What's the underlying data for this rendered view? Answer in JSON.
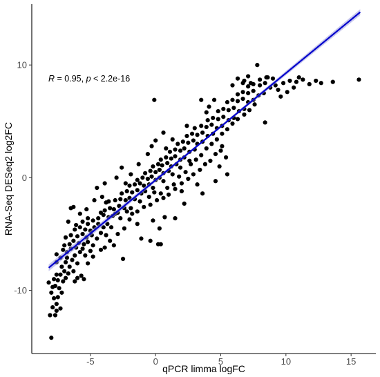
{
  "chart_data": {
    "type": "scatter",
    "title": "",
    "xlabel": "qPCR limma logFC",
    "ylabel": "RNA-Seq DESeq2 log2FC",
    "xlim": [
      -9.5,
      16.9
    ],
    "ylim": [
      -15.6,
      15.4
    ],
    "xticks": [
      -5,
      0,
      5,
      10,
      15
    ],
    "yticks": [
      -10,
      0,
      10
    ],
    "grid": false,
    "annotation": {
      "r_symbol": "R",
      "r_text": " = 0.95, ",
      "p_symbol": "p",
      "p_text": " < 2.2e-16"
    },
    "regression": {
      "color": "#0000cc",
      "band_color": "#9a9adf",
      "x_range": [
        -8.2,
        15.7
      ],
      "slope": 0.949,
      "intercept": -0.21
    },
    "point_color": "#000000",
    "points": [
      [
        -8.1,
        -12.2
      ],
      [
        -7.7,
        -12.2
      ],
      [
        -8.0,
        -14.2
      ],
      [
        -7.9,
        -11.5
      ],
      [
        -7.6,
        -11.8
      ],
      [
        -7.3,
        -11.6
      ],
      [
        -7.6,
        -11.2
      ],
      [
        -7.8,
        -10.7
      ],
      [
        -8.0,
        -10.2
      ],
      [
        -7.5,
        -10.6
      ],
      [
        -7.2,
        -10.2
      ],
      [
        -7.9,
        -9.7
      ],
      [
        -8.2,
        -9.3
      ],
      [
        -7.7,
        -9.6
      ],
      [
        -7.4,
        -9.8
      ],
      [
        -7.8,
        -9.0
      ],
      [
        -7.5,
        -9.1
      ],
      [
        -7.1,
        -9.2
      ],
      [
        -6.9,
        -8.9
      ],
      [
        -7.6,
        -8.6
      ],
      [
        -7.0,
        -8.3
      ],
      [
        -7.3,
        -8.6
      ],
      [
        -6.7,
        -8.5
      ],
      [
        -6.3,
        -8.3
      ],
      [
        -5.7,
        -8.7
      ],
      [
        -7.2,
        -7.9
      ],
      [
        -6.6,
        -7.9
      ],
      [
        -6.9,
        -7.5
      ],
      [
        -7.6,
        -7.5
      ],
      [
        -7.3,
        -7.1
      ],
      [
        -6.8,
        -7.1
      ],
      [
        -6.4,
        -7.3
      ],
      [
        -6.0,
        -7.6
      ],
      [
        -5.2,
        -7.6
      ],
      [
        -6.2,
        -6.9
      ],
      [
        -6.8,
        -6.6
      ],
      [
        -7.1,
        -6.4
      ],
      [
        -6.5,
        -6.3
      ],
      [
        -6.1,
        -6.2
      ],
      [
        -5.8,
        -6.6
      ],
      [
        -5.4,
        -6.9
      ],
      [
        -5.0,
        -6.5
      ],
      [
        -6.6,
        -5.9
      ],
      [
        -6.3,
        -5.6
      ],
      [
        -5.9,
        -5.8
      ],
      [
        -5.5,
        -5.9
      ],
      [
        -5.6,
        -6.3
      ],
      [
        -5.2,
        -5.7
      ],
      [
        -4.8,
        -6.0
      ],
      [
        -6.9,
        -5.3
      ],
      [
        -6.5,
        -5.1
      ],
      [
        -6.0,
        -5.2
      ],
      [
        -5.6,
        -5.0
      ],
      [
        -5.3,
        -5.3
      ],
      [
        -4.9,
        -5.1
      ],
      [
        -4.5,
        -5.4
      ],
      [
        -4.2,
        -4.9
      ],
      [
        -6.2,
        -4.6
      ],
      [
        -5.8,
        -4.4
      ],
      [
        -5.4,
        -4.6
      ],
      [
        -5.0,
        -4.7
      ],
      [
        -4.7,
        -4.4
      ],
      [
        -4.4,
        -4.1
      ],
      [
        -4.0,
        -4.4
      ],
      [
        -3.7,
        -4.1
      ],
      [
        -5.6,
        -3.9
      ],
      [
        -5.2,
        -3.6
      ],
      [
        -4.8,
        -3.8
      ],
      [
        -4.4,
        -3.6
      ],
      [
        -4.0,
        -3.3
      ],
      [
        -3.6,
        -3.5
      ],
      [
        -3.3,
        -3.4
      ],
      [
        -2.9,
        -3.1
      ],
      [
        -3.9,
        -2.9
      ],
      [
        -3.5,
        -2.7
      ],
      [
        -3.2,
        -2.8
      ],
      [
        -2.8,
        -2.5
      ],
      [
        -2.4,
        -2.7
      ],
      [
        -3.6,
        -2.1
      ],
      [
        -3.1,
        -2.0
      ],
      [
        -2.7,
        -1.9
      ],
      [
        -2.3,
        -2.0
      ],
      [
        -2.0,
        -1.8
      ],
      [
        -1.6,
        -1.9
      ],
      [
        -2.6,
        -1.4
      ],
      [
        -2.2,
        -1.2
      ],
      [
        -1.8,
        -1.3
      ],
      [
        -1.4,
        -1.1
      ],
      [
        -1.1,
        -1.4
      ],
      [
        -0.8,
        -1.2
      ],
      [
        -2.0,
        -0.7
      ],
      [
        -1.6,
        -0.6
      ],
      [
        -1.2,
        -0.5
      ],
      [
        -0.9,
        -0.7
      ],
      [
        -0.5,
        -0.6
      ],
      [
        -0.2,
        -0.9
      ],
      [
        -1.4,
        -0.2
      ],
      [
        -1.0,
        0.0
      ],
      [
        -0.6,
        -0.1
      ],
      [
        -0.3,
        0.1
      ],
      [
        0.0,
        -0.2
      ],
      [
        0.3,
        0.0
      ],
      [
        0.6,
        -0.3
      ],
      [
        -0.8,
        0.4
      ],
      [
        -0.4,
        0.6
      ],
      [
        0.0,
        0.5
      ],
      [
        0.3,
        0.7
      ],
      [
        0.6,
        0.4
      ],
      [
        1.0,
        0.6
      ],
      [
        1.3,
        0.3
      ],
      [
        -0.2,
        1.0
      ],
      [
        0.2,
        1.2
      ],
      [
        0.5,
        1.1
      ],
      [
        0.9,
        1.3
      ],
      [
        1.2,
        1.0
      ],
      [
        1.6,
        1.2
      ],
      [
        1.9,
        0.9
      ],
      [
        0.4,
        1.6
      ],
      [
        0.8,
        1.8
      ],
      [
        1.2,
        1.7
      ],
      [
        1.5,
        1.9
      ],
      [
        1.9,
        1.6
      ],
      [
        2.2,
        1.8
      ],
      [
        2.6,
        1.5
      ],
      [
        1.1,
        2.3
      ],
      [
        1.5,
        2.5
      ],
      [
        1.9,
        2.4
      ],
      [
        2.2,
        2.6
      ],
      [
        2.6,
        2.3
      ],
      [
        3.0,
        2.5
      ],
      [
        1.7,
        3.0
      ],
      [
        2.1,
        3.2
      ],
      [
        2.5,
        3.1
      ],
      [
        2.9,
        3.3
      ],
      [
        3.2,
        3.0
      ],
      [
        3.6,
        3.2
      ],
      [
        2.4,
        3.7
      ],
      [
        2.8,
        3.9
      ],
      [
        3.2,
        3.8
      ],
      [
        3.6,
        4.0
      ],
      [
        4.0,
        3.7
      ],
      [
        4.4,
        3.9
      ],
      [
        3.0,
        4.4
      ],
      [
        3.5,
        4.6
      ],
      [
        3.9,
        4.5
      ],
      [
        4.3,
        4.7
      ],
      [
        4.7,
        4.4
      ],
      [
        5.1,
        4.6
      ],
      [
        4.0,
        5.1
      ],
      [
        4.4,
        5.3
      ],
      [
        4.8,
        5.2
      ],
      [
        5.2,
        5.4
      ],
      [
        5.6,
        5.1
      ],
      [
        6.0,
        5.3
      ],
      [
        4.8,
        5.9
      ],
      [
        5.2,
        6.1
      ],
      [
        5.6,
        6.0
      ],
      [
        6.0,
        6.2
      ],
      [
        6.4,
        5.9
      ],
      [
        6.8,
        6.1
      ],
      [
        5.5,
        6.7
      ],
      [
        5.9,
        6.9
      ],
      [
        6.3,
        6.8
      ],
      [
        6.7,
        7.0
      ],
      [
        7.1,
        6.7
      ],
      [
        7.5,
        6.9
      ],
      [
        6.3,
        7.4
      ],
      [
        6.7,
        7.6
      ],
      [
        7.1,
        7.5
      ],
      [
        7.5,
        7.7
      ],
      [
        7.9,
        7.3
      ],
      [
        8.3,
        7.5
      ],
      [
        7.1,
        8.1
      ],
      [
        7.5,
        8.3
      ],
      [
        8.0,
        8.2
      ],
      [
        8.4,
        8.4
      ],
      [
        8.8,
        8.0
      ],
      [
        9.2,
        8.2
      ],
      [
        8.0,
        8.7
      ],
      [
        8.5,
        8.9
      ],
      [
        9.0,
        8.8
      ],
      [
        9.4,
        7.8
      ],
      [
        9.8,
        8.4
      ],
      [
        10.3,
        8.6
      ],
      [
        10.8,
        8.5
      ],
      [
        11.3,
        8.7
      ],
      [
        11.8,
        8.3
      ],
      [
        12.3,
        8.6
      ],
      [
        12.7,
        8.4
      ],
      [
        13.6,
        8.5
      ],
      [
        15.6,
        8.7
      ],
      [
        11.0,
        8.9
      ],
      [
        9.6,
        7.2
      ],
      [
        10.1,
        7.6
      ],
      [
        10.6,
        8.0
      ],
      [
        7.8,
        10.0
      ],
      [
        8.6,
        8.9
      ],
      [
        6.7,
        8.4
      ],
      [
        6.8,
        8.6
      ],
      [
        -0.1,
        6.9
      ],
      [
        8.4,
        4.9
      ],
      [
        5.1,
        2.8
      ],
      [
        5.4,
        1.8
      ],
      [
        5.5,
        0.3
      ],
      [
        4.9,
        1.0
      ],
      [
        4.6,
        -0.3
      ],
      [
        1.5,
        -3.6
      ],
      [
        3.6,
        -1.4
      ],
      [
        3.2,
        -0.6
      ],
      [
        2.2,
        -2.3
      ],
      [
        2.0,
        -1.2
      ],
      [
        0.3,
        -4.5
      ],
      [
        0.7,
        -3.5
      ],
      [
        -0.2,
        -3.8
      ],
      [
        -0.4,
        -5.6
      ],
      [
        -1.1,
        -5.4
      ],
      [
        0.4,
        -5.9
      ],
      [
        0.2,
        -5.9
      ],
      [
        -2.5,
        -7.2
      ],
      [
        -1.4,
        -4.1
      ],
      [
        -1.8,
        -3.2
      ],
      [
        -2.2,
        -3.0
      ],
      [
        -3.1,
        -3.2
      ],
      [
        -3.8,
        -2.2
      ],
      [
        -4.1,
        -1.7
      ],
      [
        -3.9,
        -0.5
      ],
      [
        -4.5,
        -0.9
      ],
      [
        -3.0,
        0.0
      ],
      [
        -2.6,
        0.9
      ],
      [
        -2.3,
        -0.5
      ],
      [
        -1.9,
        0.3
      ],
      [
        -1.3,
        1.2
      ],
      [
        -0.6,
        2.1
      ],
      [
        -0.3,
        2.8
      ],
      [
        0.0,
        3.3
      ],
      [
        0.8,
        2.6
      ],
      [
        1.3,
        3.4
      ],
      [
        0.6,
        4.0
      ],
      [
        2.4,
        4.6
      ],
      [
        3.9,
        5.8
      ],
      [
        4.1,
        6.3
      ],
      [
        3.5,
        6.9
      ],
      [
        4.5,
        6.9
      ],
      [
        5.9,
        8.2
      ],
      [
        6.3,
        8.8
      ],
      [
        7.1,
        9.0
      ],
      [
        7.3,
        8.4
      ],
      [
        -6.5,
        -2.7
      ],
      [
        -6.3,
        -2.6
      ],
      [
        -6.7,
        -3.9
      ],
      [
        -6.1,
        -4.2
      ],
      [
        -5.2,
        -4.1
      ],
      [
        -4.2,
        -3.1
      ],
      [
        -4.7,
        -2.0
      ],
      [
        -5.3,
        -2.8
      ],
      [
        -5.8,
        -3.2
      ],
      [
        -7.6,
        -6.8
      ],
      [
        -7.0,
        -6.0
      ],
      [
        -6.0,
        -8.9
      ],
      [
        -5.5,
        -9.0
      ],
      [
        -6.2,
        -9.2
      ],
      [
        -4.8,
        -7.0
      ],
      [
        -4.2,
        -6.4
      ],
      [
        -3.5,
        -5.6
      ],
      [
        -3.8,
        -5.1
      ],
      [
        -2.4,
        -4.5
      ],
      [
        -2.7,
        -3.6
      ],
      [
        -1.9,
        -2.7
      ],
      [
        -1.2,
        -2.1
      ],
      [
        -0.5,
        -1.7
      ],
      [
        -0.1,
        -1.3
      ],
      [
        0.4,
        -1.4
      ],
      [
        0.9,
        -0.9
      ],
      [
        1.4,
        -0.6
      ],
      [
        1.8,
        0.1
      ],
      [
        2.3,
        0.5
      ],
      [
        2.7,
        1.2
      ],
      [
        3.1,
        1.6
      ],
      [
        3.5,
        2.0
      ],
      [
        3.9,
        2.6
      ],
      [
        4.3,
        3.0
      ],
      [
        4.7,
        3.4
      ],
      [
        5.1,
        3.9
      ],
      [
        5.5,
        4.3
      ],
      [
        5.9,
        4.8
      ],
      [
        6.3,
        5.2
      ],
      [
        6.8,
        5.6
      ],
      [
        7.2,
        6.0
      ],
      [
        7.6,
        6.5
      ],
      [
        -3.9,
        -6.2
      ],
      [
        -3.2,
        -6.0
      ],
      [
        -2.9,
        -5.0
      ],
      [
        -3.4,
        -4.4
      ],
      [
        -2.0,
        -3.7
      ],
      [
        -1.4,
        -3.0
      ],
      [
        -0.9,
        -2.6
      ],
      [
        -0.4,
        -2.4
      ],
      [
        0.1,
        -2.0
      ],
      [
        0.6,
        -1.8
      ],
      [
        1.0,
        -1.5
      ],
      [
        1.5,
        -1.0
      ],
      [
        2.0,
        -0.5
      ],
      [
        2.5,
        -0.1
      ],
      [
        2.9,
        0.3
      ],
      [
        3.4,
        0.7
      ],
      [
        3.8,
        1.2
      ],
      [
        4.2,
        1.5
      ],
      [
        4.6,
        2.1
      ],
      [
        5.0,
        2.4
      ]
    ]
  }
}
